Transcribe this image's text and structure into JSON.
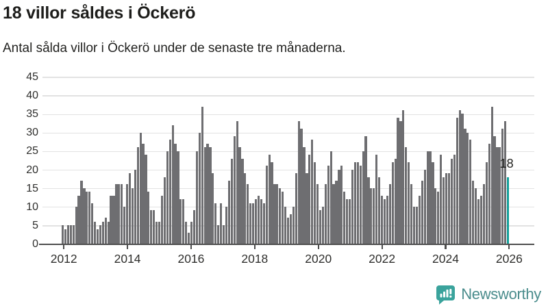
{
  "header": {
    "title": "18 villor såldes i Öckerö",
    "subtitle": "Antal sålda villor i Öckerö under de senaste tre månaderna."
  },
  "chart_data": {
    "type": "bar",
    "title": "18 villor såldes i Öckerö",
    "description": "Antal sålda villor per månad i Öckerö, januari 2012 till november 2025",
    "x_start": "2012-01",
    "x_end": "2025-11",
    "x_tick_labels": [
      "2012",
      "2014",
      "2016",
      "2018",
      "2020",
      "2022",
      "2024",
      "2026"
    ],
    "y_ticks": [
      0,
      5,
      10,
      15,
      20,
      25,
      30,
      35,
      40,
      45
    ],
    "ylim": [
      0,
      45
    ],
    "grid": true,
    "series": [
      {
        "name": "Antal sålda villor",
        "values": [
          5,
          4,
          5,
          5,
          5,
          10,
          13,
          17,
          15,
          14,
          14,
          11,
          6,
          4,
          5,
          6,
          7,
          6,
          13,
          13,
          16,
          16,
          16,
          10,
          16,
          19,
          15,
          20,
          26,
          30,
          27,
          24,
          14,
          9,
          9,
          6,
          6,
          13,
          18,
          25,
          28,
          32,
          27,
          25,
          12,
          12,
          6,
          3,
          6,
          9,
          25,
          30,
          37,
          26,
          27,
          26,
          19,
          11,
          5,
          11,
          5,
          10,
          17,
          23,
          29,
          33,
          26,
          23,
          19,
          16,
          11,
          11,
          12,
          13,
          12,
          11,
          21,
          24,
          22,
          16,
          16,
          15,
          14,
          10,
          7,
          8,
          10,
          19,
          33,
          31,
          26,
          19,
          24,
          28,
          22,
          16,
          9,
          10,
          16,
          21,
          25,
          16,
          17,
          20,
          21,
          14,
          12,
          12,
          20,
          22,
          22,
          21,
          25,
          29,
          18,
          15,
          15,
          24,
          18,
          13,
          12,
          13,
          16,
          22,
          23,
          34,
          33,
          36,
          26,
          22,
          16,
          10,
          10,
          13,
          17,
          20,
          25,
          25,
          22,
          15,
          14,
          24,
          18,
          19,
          19,
          23,
          24,
          34,
          36,
          35,
          31,
          30,
          28,
          17,
          15,
          12,
          13,
          16,
          22,
          27,
          37,
          29,
          26,
          26,
          31,
          33,
          18
        ]
      }
    ],
    "highlight": {
      "index": 166,
      "value": 18,
      "label": "18"
    }
  },
  "colors": {
    "bar": "#6e6e71",
    "highlight": "#12a09a",
    "gridline": "#e2e2e2",
    "axis": "#4d4d4d",
    "text": "#1d1d1b",
    "brand_teal": "#3aa39c",
    "brand_text": "#4a8c8c"
  },
  "footer": {
    "brand": "Newsworthy"
  }
}
